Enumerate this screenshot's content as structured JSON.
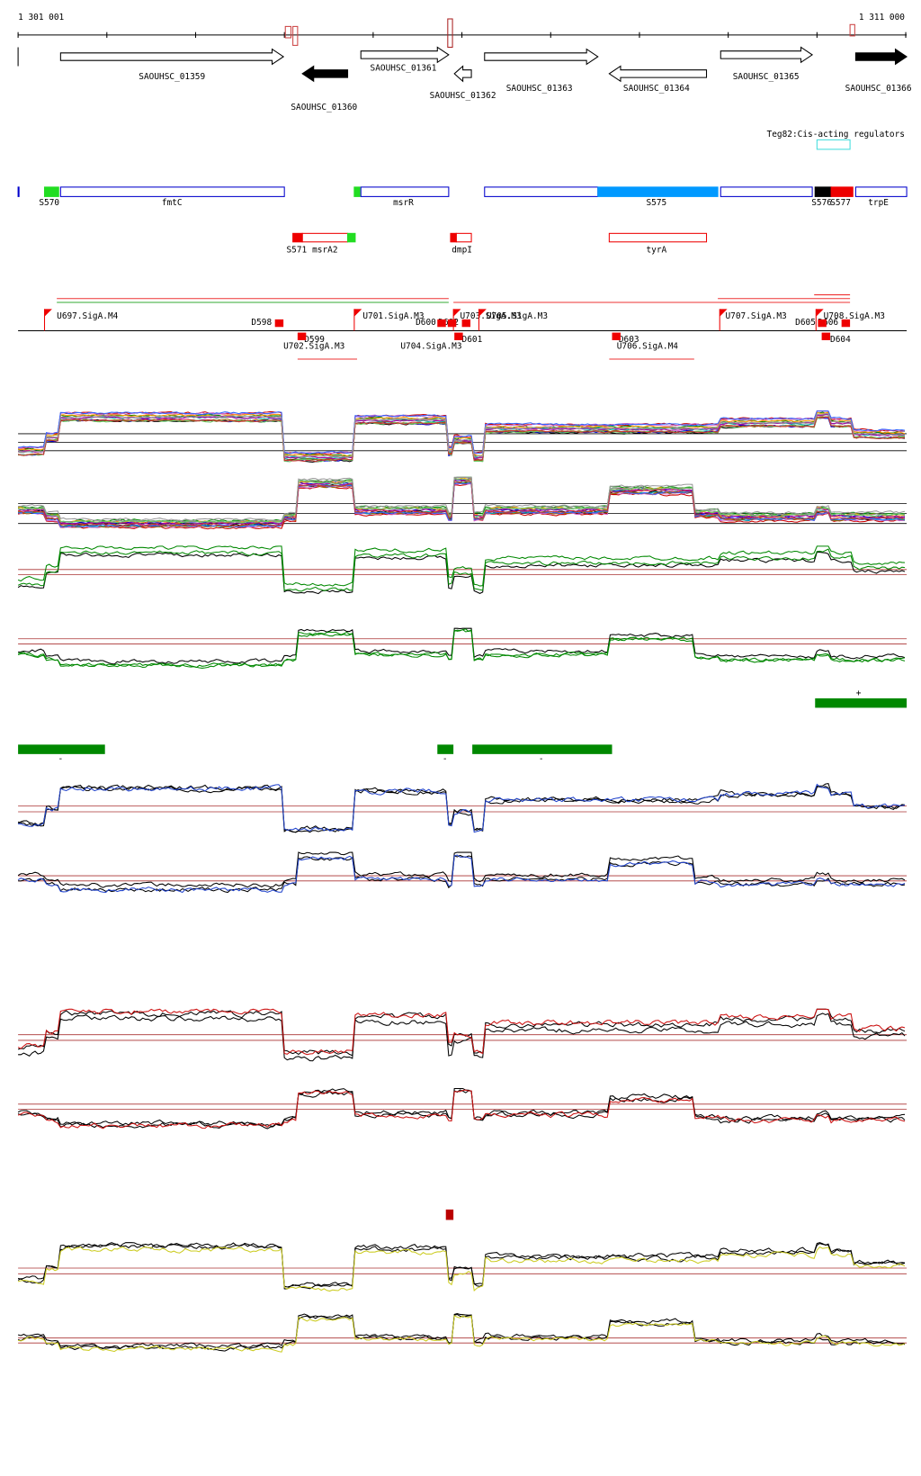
{
  "ruler": {
    "start": "1 301 001",
    "end": "1 311 000"
  },
  "genes": [
    "SAOUHSC_01359",
    "SAOUHSC_01360",
    "SAOUHSC_01361",
    "SAOUHSC_01362",
    "SAOUHSC_01363",
    "SAOUHSC_01364",
    "SAOUHSC_01365",
    "SAOUHSC_01366"
  ],
  "regulators": "Teg82:Cis-acting regulators",
  "segments": [
    "S570",
    "fmtC",
    "msrR",
    "S575",
    "S576",
    "S577",
    "trpE"
  ],
  "segments2": [
    "S571",
    "msrA2",
    "dmpI",
    "tyrA"
  ],
  "promoters": [
    "U697.SigA.M4",
    "U701.SigA.M3",
    "U703.SigA.M3",
    "U705.SigA.M3",
    "U707.SigA.M3",
    "U708.SigA.M3",
    "D598",
    "D600",
    "D602",
    "D605",
    "D606",
    "D599",
    "D601",
    "D603",
    "D604",
    "U702.SigA.M3",
    "U704.SigA.M3",
    "U706.SigA.M4"
  ],
  "strands": [
    "+",
    "-",
    "-",
    "-"
  ]
}
